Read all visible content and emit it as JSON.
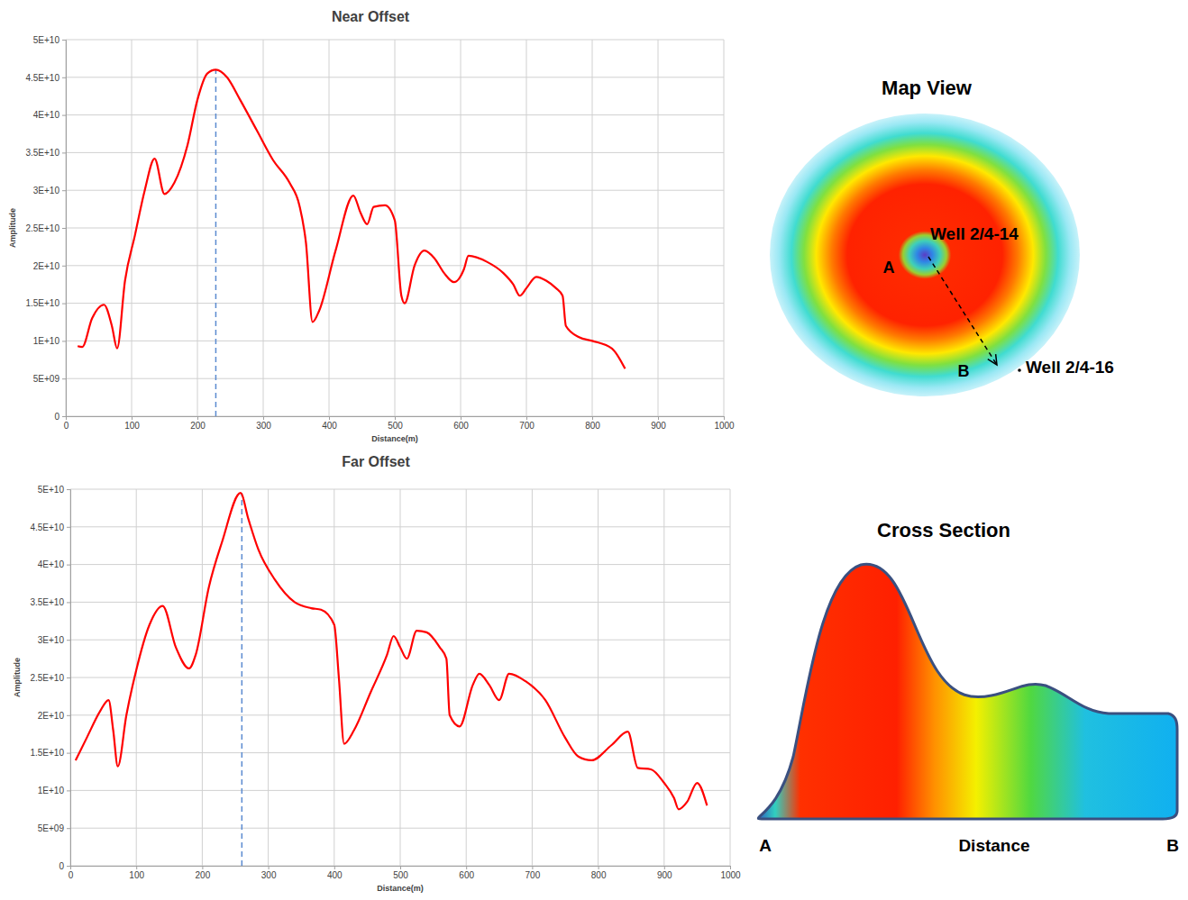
{
  "chart_data": [
    {
      "type": "line",
      "title": "Near Offset",
      "x_label": "Distance(m)",
      "y_label": "Amplitude",
      "color": "#ff0000",
      "x": [
        18,
        25,
        40,
        58,
        70,
        78,
        90,
        105,
        120,
        135,
        150,
        165,
        185,
        200,
        215,
        228,
        245,
        265,
        290,
        315,
        340,
        355,
        365,
        375,
        385,
        410,
        437,
        448,
        458,
        468,
        485,
        500,
        510,
        515,
        530,
        545,
        560,
        575,
        590,
        605,
        612,
        640,
        665,
        680,
        690,
        700,
        715,
        730,
        745,
        755,
        760,
        780,
        800,
        830,
        850
      ],
      "values": [
        9300000000.0,
        9200000000.0,
        13000000000.0,
        14800000000.0,
        12000000000.0,
        9000000000.0,
        18000000000.0,
        24000000000.0,
        30000000000.0,
        34200000000.0,
        29500000000.0,
        31000000000.0,
        36000000000.0,
        42000000000.0,
        45500000000.0,
        46000000000.0,
        45000000000.0,
        42000000000.0,
        38000000000.0,
        34000000000.0,
        31000000000.0,
        28000000000.0,
        23000000000.0,
        12500000000.0,
        14000000000.0,
        22000000000.0,
        29300000000.0,
        27000000000.0,
        25500000000.0,
        27800000000.0,
        28000000000.0,
        26000000000.0,
        16000000000.0,
        15000000000.0,
        20000000000.0,
        22000000000.0,
        21000000000.0,
        19000000000.0,
        17800000000.0,
        19500000000.0,
        21300000000.0,
        20500000000.0,
        19000000000.0,
        17500000000.0,
        16000000000.0,
        17000000000.0,
        18500000000.0,
        18000000000.0,
        17000000000.0,
        16000000000.0,
        12000000000.0,
        10500000000.0,
        10000000000.0,
        9000000000.0,
        6300000000.0
      ],
      "vline": 228,
      "xlim": [
        0,
        1000
      ],
      "xticks": [
        0,
        100,
        200,
        300,
        400,
        500,
        600,
        700,
        800,
        900,
        1000
      ],
      "ylim": [
        0,
        50000000000.0
      ],
      "yticks": [
        0,
        {
          "value": 5000000000.0,
          "label": "5E+09"
        },
        {
          "value": 10000000000.0,
          "label": "1E+10"
        },
        {
          "value": 15000000000.0,
          "label": "1.5E+10"
        },
        {
          "value": 20000000000.0,
          "label": "2E+10"
        },
        {
          "value": 25000000000.0,
          "label": "2.5E+10"
        },
        {
          "value": 30000000000.0,
          "label": "3E+10"
        },
        {
          "value": 35000000000.0,
          "label": "3.5E+10"
        },
        {
          "value": 40000000000.0,
          "label": "4E+10"
        },
        {
          "value": 45000000000.0,
          "label": "4.5E+10"
        },
        {
          "value": 50000000000.0,
          "label": "5E+10"
        }
      ],
      "grid": true
    },
    {
      "type": "line",
      "title": "Far Offset",
      "x_label": "Distance(m)",
      "y_label": "Amplitude",
      "color": "#ff0000",
      "x": [
        8,
        25,
        45,
        58,
        65,
        72,
        85,
        100,
        120,
        140,
        160,
        180,
        190,
        210,
        230,
        258,
        270,
        285,
        310,
        340,
        365,
        380,
        400,
        407,
        415,
        430,
        455,
        480,
        490,
        500,
        510,
        525,
        540,
        560,
        570,
        575,
        590,
        610,
        620,
        635,
        650,
        665,
        690,
        720,
        750,
        770,
        790,
        820,
        845,
        860,
        880,
        900,
        915,
        922,
        935,
        950,
        965
      ],
      "values": [
        14000000000.0,
        17000000000.0,
        20500000000.0,
        22000000000.0,
        18000000000.0,
        13200000000.0,
        20000000000.0,
        26000000000.0,
        32000000000.0,
        34500000000.0,
        29000000000.0,
        26200000000.0,
        28000000000.0,
        37000000000.0,
        43000000000.0,
        49500000000.0,
        46000000000.0,
        42000000000.0,
        38000000000.0,
        35000000000.0,
        34200000000.0,
        34000000000.0,
        32000000000.0,
        25000000000.0,
        16200000000.0,
        18000000000.0,
        23000000000.0,
        28000000000.0,
        30500000000.0,
        29000000000.0,
        27500000000.0,
        31200000000.0,
        31000000000.0,
        29000000000.0,
        27500000000.0,
        20000000000.0,
        18500000000.0,
        24000000000.0,
        25500000000.0,
        24000000000.0,
        22000000000.0,
        25500000000.0,
        24500000000.0,
        22000000000.0,
        17000000000.0,
        14500000000.0,
        14000000000.0,
        16000000000.0,
        17800000000.0,
        13000000000.0,
        12800000000.0,
        11000000000.0,
        9000000000.0,
        7500000000.0,
        8500000000.0,
        11000000000.0,
        8000000000.0
      ],
      "vline": 260,
      "xlim": [
        0,
        1000
      ],
      "xticks": [
        0,
        100,
        200,
        300,
        400,
        500,
        600,
        700,
        800,
        900,
        1000
      ],
      "ylim": [
        0,
        50000000000.0
      ],
      "yticks": [
        0,
        {
          "value": 5000000000.0,
          "label": "5E+09"
        },
        {
          "value": 10000000000.0,
          "label": "1E+10"
        },
        {
          "value": 15000000000.0,
          "label": "1.5E+10"
        },
        {
          "value": 20000000000.0,
          "label": "2E+10"
        },
        {
          "value": 25000000000.0,
          "label": "2.5E+10"
        },
        {
          "value": 30000000000.0,
          "label": "3E+10"
        },
        {
          "value": 35000000000.0,
          "label": "3.5E+10"
        },
        {
          "value": 40000000000.0,
          "label": "4E+10"
        },
        {
          "value": 45000000000.0,
          "label": "4.5E+10"
        },
        {
          "value": 50000000000.0,
          "label": "5E+10"
        }
      ],
      "grid": true
    }
  ],
  "map_view": {
    "title": "Map View",
    "well_a": "Well 2/4-14",
    "point_a": "A",
    "point_b": "B",
    "well_b": "Well 2/4-16"
  },
  "cross_section": {
    "title": "Cross Section",
    "start": "A",
    "axis": "Distance",
    "end": "B"
  }
}
